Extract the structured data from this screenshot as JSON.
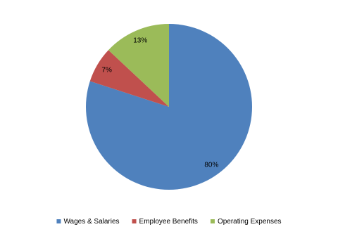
{
  "chart_data": {
    "type": "pie",
    "categories": [
      "Wages & Salaries",
      "Employee Benefits",
      "Operating Expenses"
    ],
    "values": [
      80,
      7,
      13
    ],
    "value_labels": [
      "80%",
      "7%",
      "13%"
    ],
    "colors": [
      "#4f81bd",
      "#c0504d",
      "#9bbb59"
    ],
    "legend": "bottom"
  }
}
